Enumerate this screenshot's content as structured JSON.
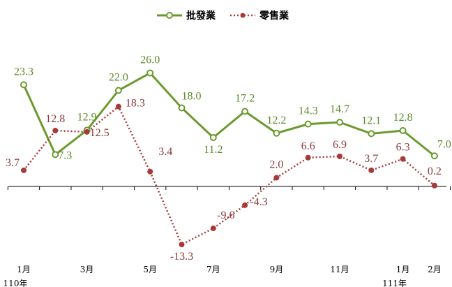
{
  "chart_data": {
    "type": "line",
    "title": "",
    "xlabel": "",
    "ylabel": "",
    "ylim": [
      -16,
      30
    ],
    "grid": false,
    "legend_position": "top-center",
    "x": [
      "110-01",
      "110-02",
      "110-03",
      "110-04",
      "110-05",
      "110-06",
      "110-07",
      "110-08",
      "110-09",
      "110-10",
      "110-11",
      "110-12",
      "111-01",
      "111-02"
    ],
    "tick_labels": [
      {
        "index": 0,
        "label": "1月",
        "year": "110年"
      },
      {
        "index": 2,
        "label": "3月"
      },
      {
        "index": 4,
        "label": "5月"
      },
      {
        "index": 6,
        "label": "7月"
      },
      {
        "index": 8,
        "label": "9月"
      },
      {
        "index": 10,
        "label": "11月"
      },
      {
        "index": 12,
        "label": "1月",
        "year": "111年"
      },
      {
        "index": 13,
        "label": "2月"
      }
    ],
    "series": [
      {
        "name": "批發業",
        "color": "#6a9a2e",
        "style": "solid",
        "values": [
          23.3,
          7.3,
          12.9,
          22.0,
          26.0,
          18.0,
          11.2,
          17.2,
          12.2,
          14.3,
          14.7,
          12.1,
          12.8,
          7.0
        ],
        "labels": [
          "23.3",
          "7.3",
          "12.9",
          "22.0",
          "26.0",
          "18.0",
          "11.2",
          "17.2",
          "12.2",
          "14.3",
          "14.7",
          "12.1",
          "12.8",
          "7.0"
        ]
      },
      {
        "name": "零售業",
        "color": "#a63a3a",
        "style": "dotted",
        "values": [
          3.7,
          12.8,
          12.5,
          18.3,
          3.4,
          -13.3,
          -9.6,
          -4.3,
          2.0,
          6.6,
          6.9,
          3.7,
          6.3,
          0.2
        ],
        "labels": [
          "3.7",
          "12.8",
          "12.5",
          "18.3",
          "3.4",
          "-13.3",
          "-9.6",
          "-4.3",
          "2.0",
          "6.6",
          "6.9",
          "3.7",
          "6.3",
          "0.2"
        ]
      }
    ]
  }
}
